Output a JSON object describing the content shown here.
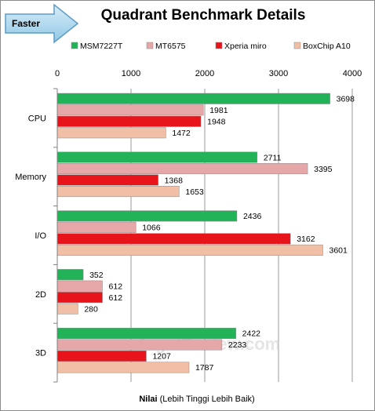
{
  "badge": {
    "label": "Faster"
  },
  "watermark": "www.JagatReview.com",
  "chart_data": {
    "type": "bar",
    "orientation": "horizontal",
    "title": "Quadrant Benchmark Details",
    "xlabel_bold": "Nilai",
    "xlabel_rest": "(Lebih Tinggi Lebih Baik)",
    "xlim": [
      0,
      4000
    ],
    "xticks": [
      0,
      1000,
      2000,
      3000,
      4000
    ],
    "legend_position": "top",
    "grid": true,
    "categories": [
      "CPU",
      "Memory",
      "I/O",
      "2D",
      "3D"
    ],
    "series": [
      {
        "name": "MSM7227T",
        "color": "#22b257",
        "values": [
          3698,
          2711,
          2436,
          352,
          2422
        ]
      },
      {
        "name": "MT6575",
        "color": "#e6a7a8",
        "values": [
          1981,
          3395,
          1066,
          612,
          2233
        ]
      },
      {
        "name": "Xperia miro",
        "color": "#e8141b",
        "values": [
          1948,
          1368,
          3162,
          612,
          1207
        ]
      },
      {
        "name": "BoxChip A10",
        "color": "#f0bfa5",
        "values": [
          1472,
          1653,
          3601,
          280,
          1787
        ]
      }
    ]
  }
}
